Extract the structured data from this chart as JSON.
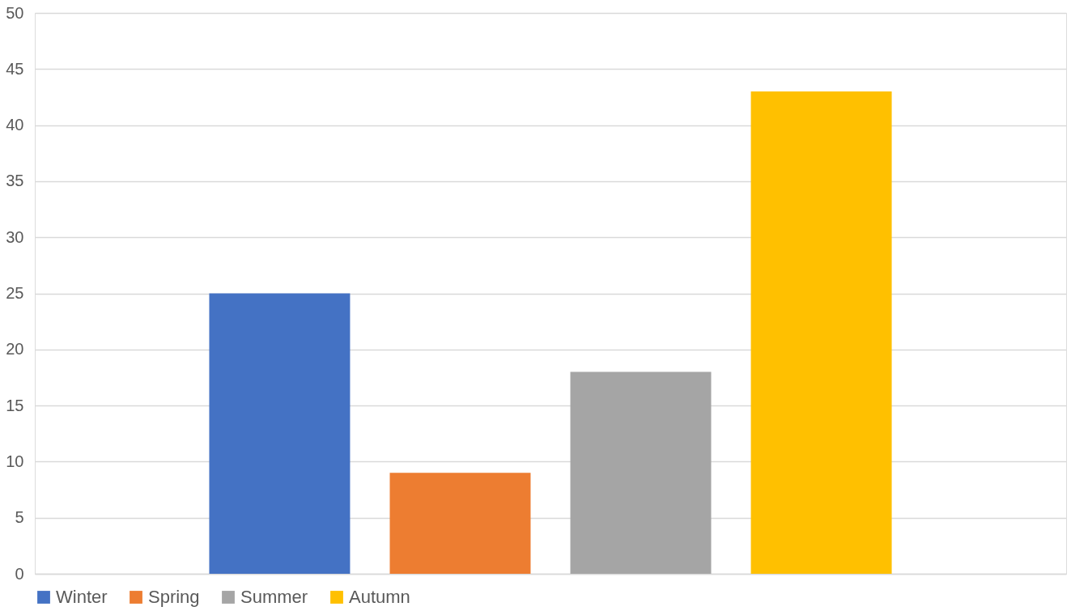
{
  "chart_data": {
    "type": "bar",
    "categories": [
      null
    ],
    "series": [
      {
        "name": "Winter",
        "color": "#4472c4",
        "values": [
          25
        ]
      },
      {
        "name": "Spring",
        "color": "#ed7d31",
        "values": [
          9
        ]
      },
      {
        "name": "Summer",
        "color": "#a5a5a5",
        "values": [
          18
        ]
      },
      {
        "name": "Autumn",
        "color": "#ffc000",
        "values": [
          43
        ]
      }
    ],
    "ylim": [
      0,
      50
    ],
    "yticks": [
      0,
      5,
      10,
      15,
      20,
      25,
      30,
      35,
      40,
      45,
      50
    ],
    "grid": "y",
    "legend": "bottom",
    "tick_labels": "y"
  }
}
